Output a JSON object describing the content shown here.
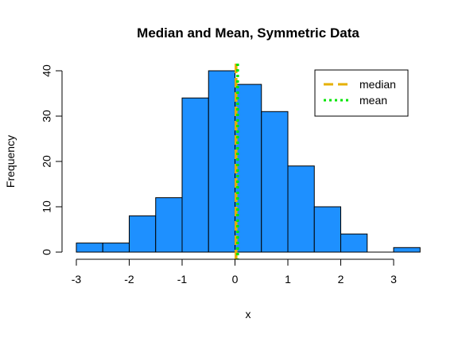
{
  "chart_data": {
    "type": "bar",
    "title": "Median and Mean, Symmetric Data",
    "xlabel": "x",
    "ylabel": "Frequency",
    "xlim": [
      -3,
      3.5
    ],
    "ylim": [
      0,
      40
    ],
    "xticks": [
      "-3",
      "-2",
      "-1",
      "0",
      "1",
      "2",
      "3"
    ],
    "yticks": [
      "0",
      "10",
      "20",
      "30",
      "40"
    ],
    "bins": [
      {
        "from": -3.0,
        "to": -2.5,
        "count": 2
      },
      {
        "from": -2.5,
        "to": -2.0,
        "count": 2
      },
      {
        "from": -2.0,
        "to": -1.5,
        "count": 8
      },
      {
        "from": -1.5,
        "to": -1.0,
        "count": 12
      },
      {
        "from": -1.0,
        "to": -0.5,
        "count": 34
      },
      {
        "from": -0.5,
        "to": 0.0,
        "count": 40
      },
      {
        "from": 0.0,
        "to": 0.5,
        "count": 37
      },
      {
        "from": 0.5,
        "to": 1.0,
        "count": 31
      },
      {
        "from": 1.0,
        "to": 1.5,
        "count": 19
      },
      {
        "from": 1.5,
        "to": 2.0,
        "count": 10
      },
      {
        "from": 2.0,
        "to": 2.5,
        "count": 4
      },
      {
        "from": 2.5,
        "to": 3.0,
        "count": 0
      },
      {
        "from": 3.0,
        "to": 3.5,
        "count": 1
      }
    ],
    "bar_color": "#1e90ff",
    "lines": [
      {
        "name": "median",
        "x": 0.02,
        "color": "#e6b000",
        "style": "dashed"
      },
      {
        "name": "mean",
        "x": 0.05,
        "color": "#00e600",
        "style": "dotted"
      }
    ],
    "legend": {
      "position": "top-right",
      "entries": [
        "median",
        "mean"
      ]
    },
    "grid": false
  }
}
